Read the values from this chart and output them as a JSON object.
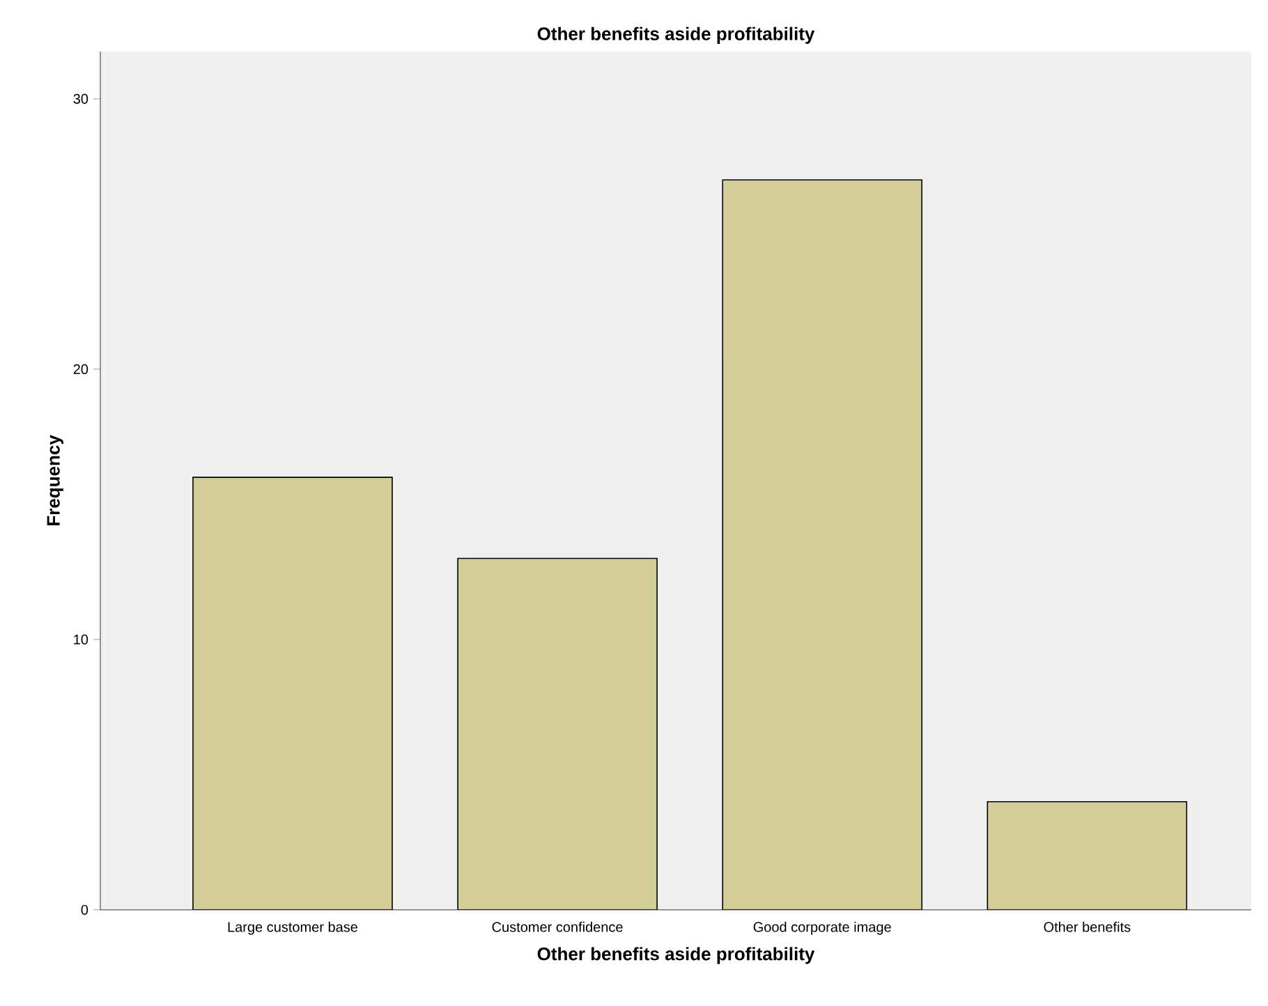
{
  "chart_data": {
    "type": "bar",
    "title": "Other benefits aside profitability",
    "xlabel": "Other benefits aside profitability",
    "ylabel": "Frequency",
    "categories": [
      "Large customer base",
      "Customer confidence",
      "Good corporate image",
      "Other benefits"
    ],
    "values": [
      16,
      13,
      27,
      4
    ],
    "color": "#d3ce97",
    "ylim": [
      0,
      31.75
    ],
    "yticks": [
      0,
      10,
      20,
      30
    ],
    "grid": false
  }
}
